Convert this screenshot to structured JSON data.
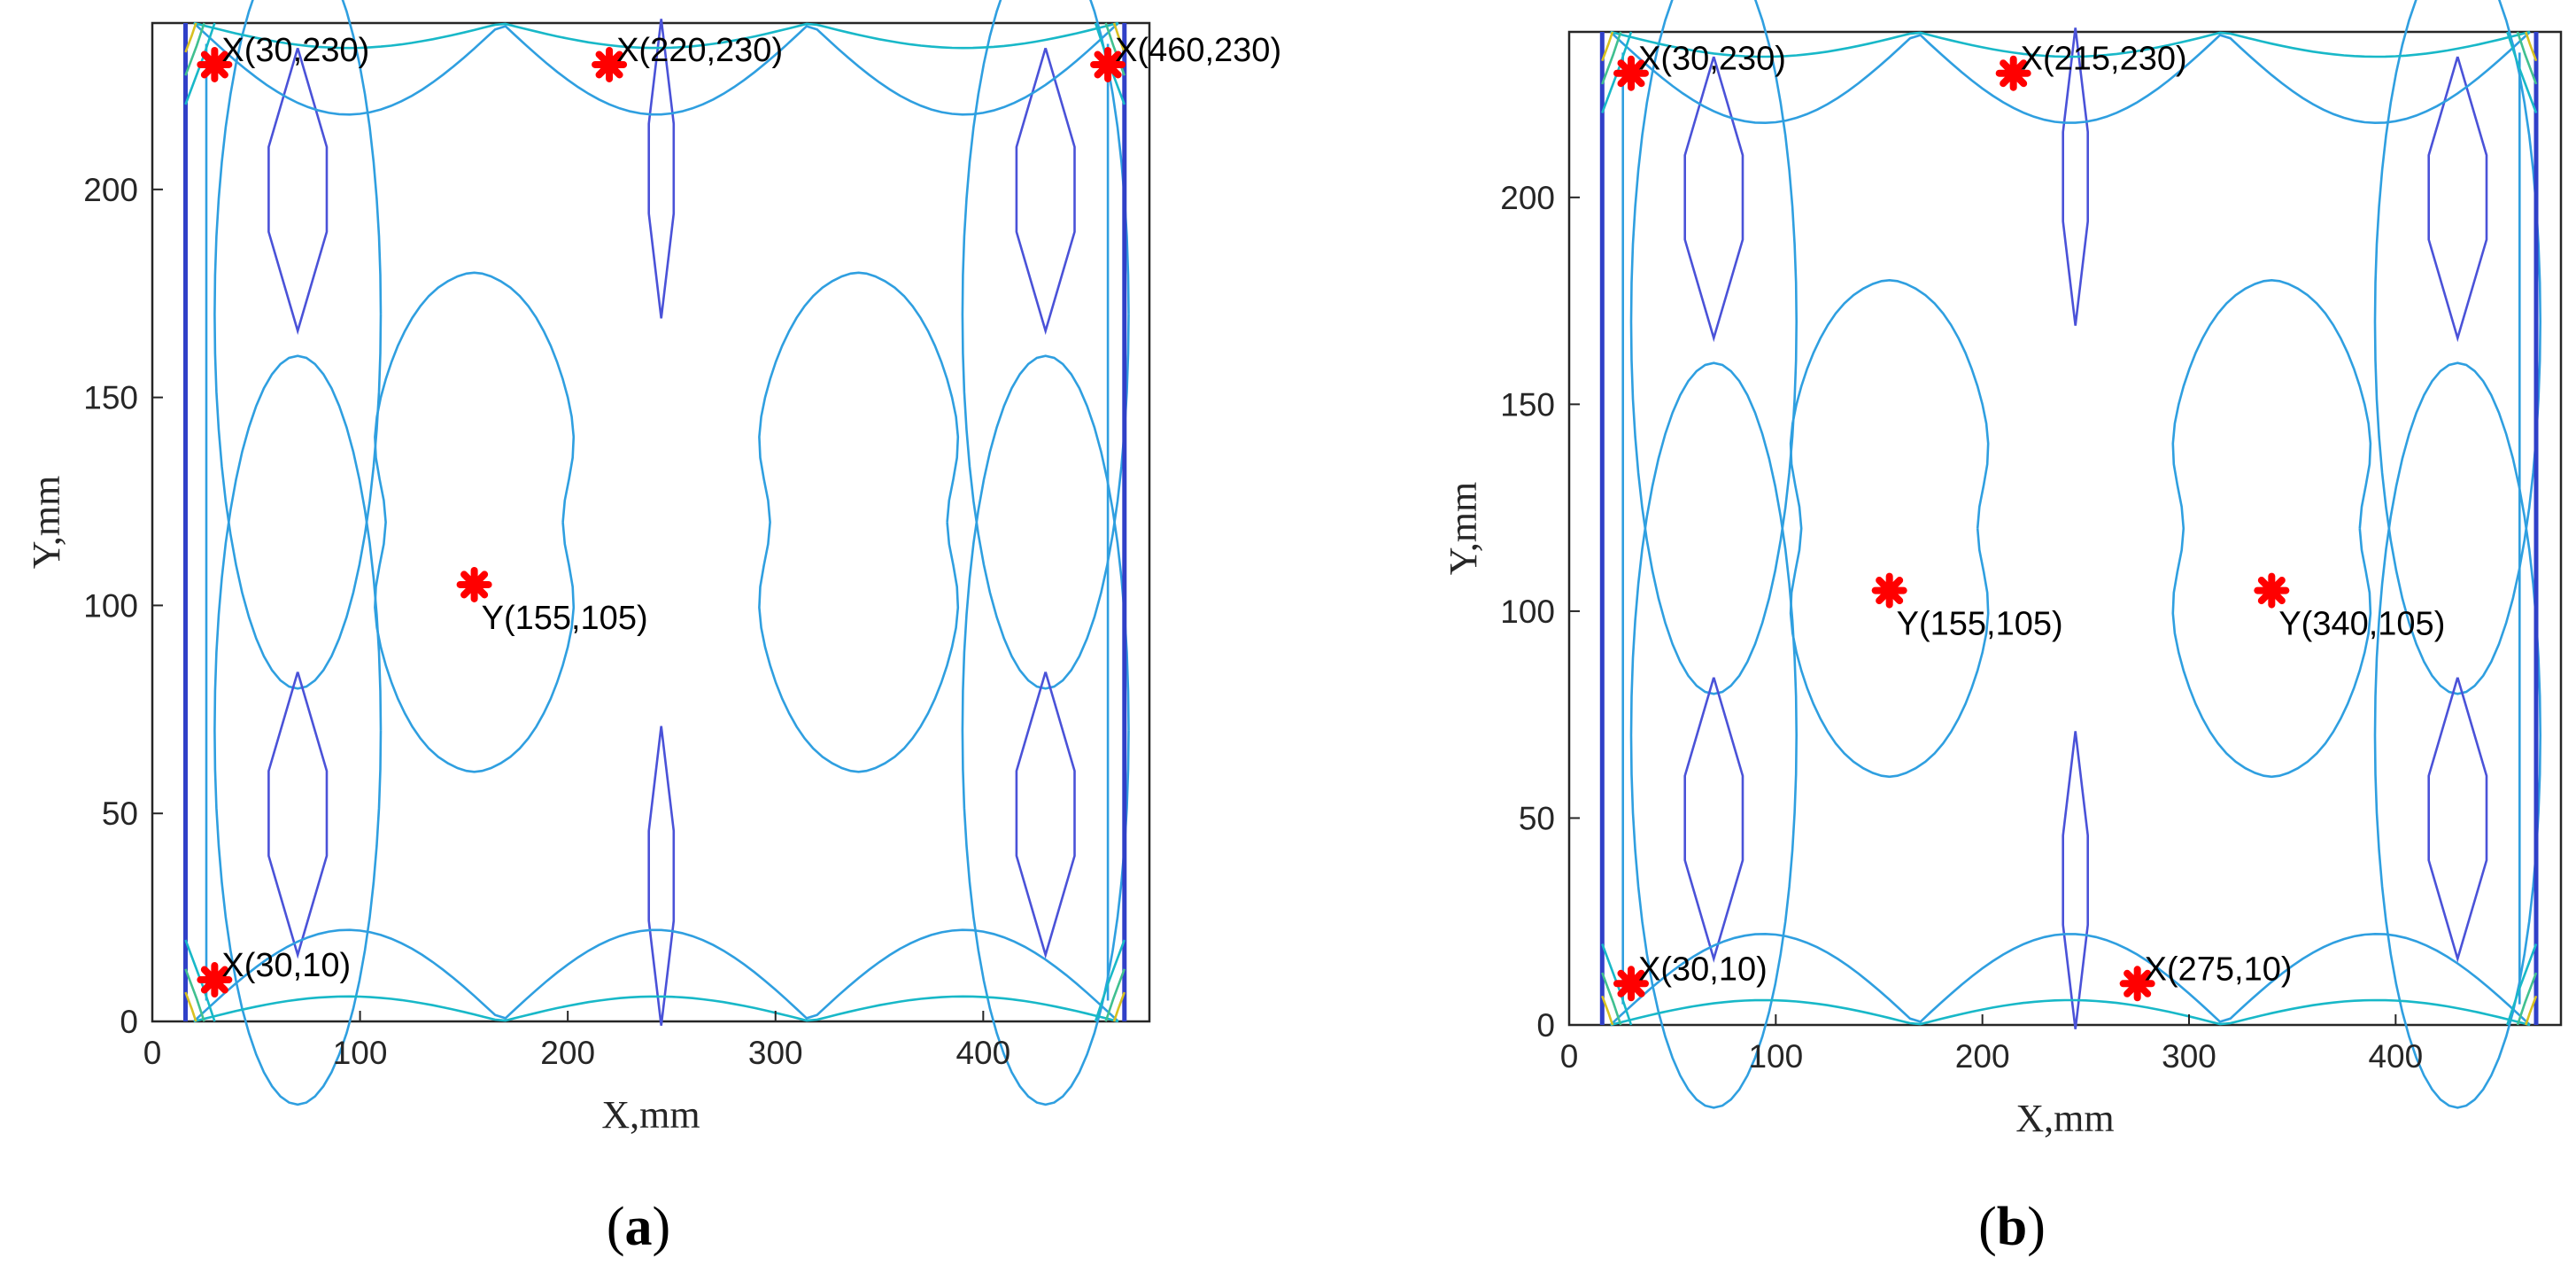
{
  "colors": {
    "marker": "#ff0000",
    "contour_inner": "#2f9fe0",
    "contour_mid": "#4a52d8",
    "contour_edge": "#3040c8",
    "contour_teal": "#18b8c8",
    "contour_green": "#40c090",
    "contour_yellow": "#d8c020"
  },
  "chart_data": [
    {
      "type": "contour",
      "panel_label_open": "(",
      "panel_label_letter": "a",
      "panel_label_close": ")",
      "xlabel": "X,mm",
      "ylabel": "Y,mm",
      "xlim": [
        0,
        480
      ],
      "ylim": [
        0,
        240
      ],
      "xticks": [
        0,
        100,
        200,
        300,
        400
      ],
      "yticks": [
        0,
        50,
        100,
        150,
        200
      ],
      "points": [
        {
          "label": "X(30,230)",
          "x": 30,
          "y": 230
        },
        {
          "label": "X(220,230)",
          "x": 220,
          "y": 230
        },
        {
          "label": "X(460,230)",
          "x": 460,
          "y": 230
        },
        {
          "label": "Y(155,105)",
          "x": 155,
          "y": 105
        },
        {
          "label": "X(30,10)",
          "x": 30,
          "y": 10
        }
      ]
    },
    {
      "type": "contour",
      "panel_label_open": "(",
      "panel_label_letter": "b",
      "panel_label_close": ")",
      "xlabel": "X,mm",
      "ylabel": "Y,mm",
      "xlim": [
        0,
        480
      ],
      "ylim": [
        0,
        240
      ],
      "xticks": [
        0,
        100,
        200,
        300,
        400
      ],
      "yticks": [
        0,
        50,
        100,
        150,
        200
      ],
      "points": [
        {
          "label": "X(30,230)",
          "x": 30,
          "y": 230
        },
        {
          "label": "X(215,230)",
          "x": 215,
          "y": 230
        },
        {
          "label": "Y(155,105)",
          "x": 155,
          "y": 105
        },
        {
          "label": "Y(340,105)",
          "x": 340,
          "y": 105
        },
        {
          "label": "X(30,10)",
          "x": 30,
          "y": 10
        },
        {
          "label": "X(275,10)",
          "x": 275,
          "y": 10
        }
      ]
    }
  ]
}
